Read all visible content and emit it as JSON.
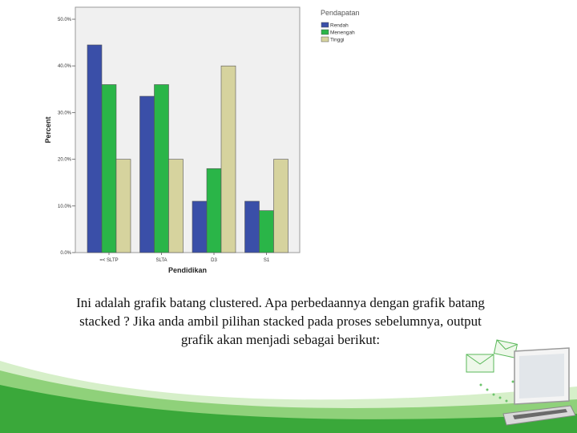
{
  "chart_data": {
    "type": "bar",
    "categories": [
      "=< SLTP",
      "SLTA",
      "D3",
      "S1"
    ],
    "series": [
      {
        "name": "Rendah",
        "values": [
          44.5,
          33.5,
          11.0,
          11.0
        ]
      },
      {
        "name": "Menengah",
        "values": [
          36.0,
          36.0,
          18.0,
          9.0
        ]
      },
      {
        "name": "Tinggi",
        "values": [
          20.0,
          20.0,
          40.0,
          20.0
        ]
      }
    ],
    "xlabel": "Pendidikan",
    "ylabel": "Percent",
    "ylim": [
      0,
      50
    ],
    "yticks": [
      "0.0%",
      "10.0%",
      "20.0%",
      "30.0%",
      "40.0%",
      "50.0%"
    ],
    "legend_title": "Pendapatan",
    "legend_position": "outside-top-right",
    "colors": [
      "#3a4fa8",
      "#2ab548",
      "#d6d39e"
    ],
    "plot_background": "#f0f0f0",
    "grid": false
  },
  "caption": {
    "lines": [
      "Ini adalah grafik batang clustered. Apa perbedaannya dengan grafik batang",
      "stacked ? Jika anda ambil pilihan stacked pada proses sebelumnya, output",
      "grafik akan menjadi sebagai berikut:"
    ]
  },
  "decor": {
    "wave_colors": [
      "#3aa83a",
      "#8fd17a",
      "#d6efc9"
    ],
    "icons": [
      "envelope-icon",
      "laptop-icon"
    ]
  }
}
